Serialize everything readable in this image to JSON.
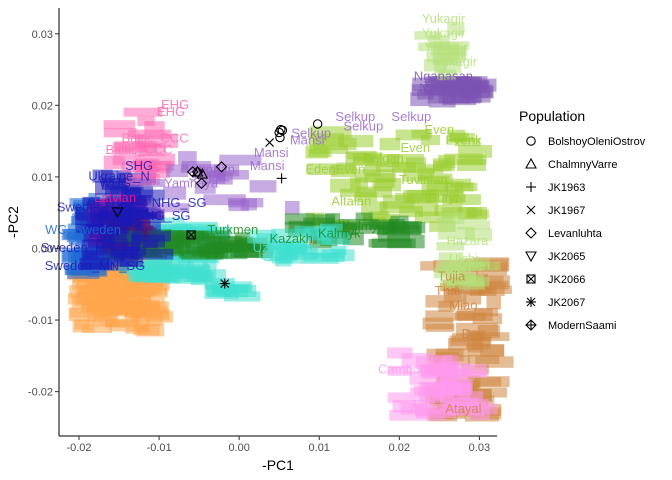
{
  "chart_data": {
    "type": "scatter",
    "xlabel": "-PC1",
    "ylabel": "-PC2",
    "xlim": [
      -0.0225,
      0.0322
    ],
    "ylim": [
      -0.0262,
      0.0336
    ],
    "x_ticks": [
      -0.02,
      -0.01,
      0.0,
      0.01,
      0.02,
      0.03
    ],
    "x_tick_labels": [
      "-0.02",
      "-0.01",
      "0.00",
      "0.01",
      "0.02",
      "0.03"
    ],
    "y_ticks": [
      -0.02,
      -0.01,
      0.0,
      0.01,
      0.02,
      0.03
    ],
    "y_tick_labels": [
      "-0.02",
      "-0.01",
      "0.00",
      "0.01",
      "0.02",
      "0.03"
    ],
    "grid": false,
    "legend": {
      "title": "Population",
      "placement": "right",
      "entries": [
        {
          "name": "BolshoyOleniOstrov",
          "shape": "circle"
        },
        {
          "name": "ChalmnyVarre",
          "shape": "triangle"
        },
        {
          "name": "JK1963",
          "shape": "plus"
        },
        {
          "name": "JK1967",
          "shape": "cross"
        },
        {
          "name": "Levanluhta",
          "shape": "diamond"
        },
        {
          "name": "JK2065",
          "shape": "triangle-down"
        },
        {
          "name": "JK2066",
          "shape": "square-cross"
        },
        {
          "name": "JK2067",
          "shape": "asterisk"
        },
        {
          "name": "ModernSaami",
          "shape": "diamond-plus"
        }
      ]
    },
    "background_clouds": [
      {
        "color": "#ffa64d",
        "x": [
          -0.0215,
          -0.0105
        ],
        "y": [
          -0.0115,
          -0.0015
        ],
        "n": 120
      },
      {
        "color": "#40e0d0",
        "x": [
          -0.015,
          -0.003
        ],
        "y": [
          -0.0045,
          0.0035
        ],
        "n": 80
      },
      {
        "color": "#1f6bd6",
        "x": [
          -0.0222,
          -0.016
        ],
        "y": [
          -0.0035,
          0.007
        ],
        "n": 55
      },
      {
        "color": "#ff1493",
        "x": [
          -0.019,
          -0.011
        ],
        "y": [
          0.0005,
          0.0065
        ],
        "n": 45
      },
      {
        "color": "#8b1a1a",
        "x": [
          -0.0175,
          -0.012
        ],
        "y": [
          0.0,
          0.0045
        ],
        "n": 25
      },
      {
        "color": "#228b22",
        "x": [
          -0.017,
          0.0018
        ],
        "y": [
          -0.001,
          0.002
        ],
        "n": 55
      },
      {
        "color": "#1a1ab8",
        "x": [
          -0.0205,
          -0.0105
        ],
        "y": [
          -0.0025,
          0.011
        ],
        "n": 55
      },
      {
        "color": "#ff69b4",
        "x": [
          -0.0175,
          -0.0095
        ],
        "y": [
          0.0095,
          0.0195
        ],
        "n": 22
      },
      {
        "color": "#9966cc",
        "x": [
          -0.014,
          0.007
        ],
        "y": [
          0.0055,
          0.013
        ],
        "n": 22
      },
      {
        "color": "#9acd32",
        "x": [
          0.008,
          0.0305
        ],
        "y": [
          0.003,
          0.0165
        ],
        "n": 80
      },
      {
        "color": "#228b22",
        "x": [
          0.005,
          0.022
        ],
        "y": [
          0.0005,
          0.0045
        ],
        "n": 30
      },
      {
        "color": "#40e0d0",
        "x": [
          0.001,
          0.0125
        ],
        "y": [
          -0.0025,
          0.003
        ],
        "n": 25
      },
      {
        "color": "#40e0d0",
        "x": [
          -0.0045,
          0.0005
        ],
        "y": [
          -0.007,
          -0.0045
        ],
        "n": 10
      },
      {
        "color": "#7b52b3",
        "x": [
          0.021,
          0.0305
        ],
        "y": [
          0.0205,
          0.0235
        ],
        "n": 30
      },
      {
        "color": "#b5e07a",
        "x": [
          0.0215,
          0.0285
        ],
        "y": [
          0.024,
          0.0315
        ],
        "n": 12
      },
      {
        "color": "#cd853f",
        "x": [
          0.0225,
          0.032
        ],
        "y": [
          -0.0235,
          -0.002
        ],
        "n": 80
      },
      {
        "color": "#ff99ee",
        "x": [
          0.018,
          0.0305
        ],
        "y": [
          -0.0235,
          -0.0145
        ],
        "n": 45
      },
      {
        "color": "#b5e07a",
        "x": [
          0.024,
          0.03
        ],
        "y": [
          -0.0055,
          0.0045
        ],
        "n": 20
      }
    ],
    "text_labels": [
      {
        "text": "Yukagir",
        "x": 0.0255,
        "y": 0.0315,
        "color": "#b5e07a"
      },
      {
        "text": "Yukagir",
        "x": 0.0255,
        "y": 0.0295,
        "color": "#b5e07a"
      },
      {
        "text": "Yukagir",
        "x": 0.0258,
        "y": 0.0275,
        "color": "#b5e07a"
      },
      {
        "text": "Yukagir",
        "x": 0.027,
        "y": 0.0255,
        "color": "#b5e07a"
      },
      {
        "text": "Nganasan",
        "x": 0.0255,
        "y": 0.0235,
        "color": "#7b52b3"
      },
      {
        "text": "Nganasan",
        "x": 0.0262,
        "y": 0.0218,
        "color": "#7b52b3"
      },
      {
        "text": "Selkup",
        "x": 0.0145,
        "y": 0.0178,
        "color": "#9966cc"
      },
      {
        "text": "Selkup",
        "x": 0.0215,
        "y": 0.0178,
        "color": "#9966cc"
      },
      {
        "text": "Selkup",
        "x": 0.0155,
        "y": 0.0165,
        "color": "#9966cc"
      },
      {
        "text": "Selkup",
        "x": 0.009,
        "y": 0.0155,
        "color": "#9966cc"
      },
      {
        "text": "Mansi",
        "x": 0.0085,
        "y": 0.0145,
        "color": "#9966cc"
      },
      {
        "text": "Mansi",
        "x": 0.004,
        "y": 0.0128,
        "color": "#9966cc"
      },
      {
        "text": "Mansi",
        "x": 0.0035,
        "y": 0.011,
        "color": "#9966cc"
      },
      {
        "text": "Even",
        "x": 0.025,
        "y": 0.016,
        "color": "#9acd32"
      },
      {
        "text": "Even",
        "x": 0.022,
        "y": 0.0135,
        "color": "#9acd32"
      },
      {
        "text": "Evenk",
        "x": 0.028,
        "y": 0.0145,
        "color": "#9acd32"
      },
      {
        "text": "Dolgan",
        "x": 0.018,
        "y": 0.012,
        "color": "#9acd32"
      },
      {
        "text": "EdenEven",
        "x": 0.012,
        "y": 0.0105,
        "color": "#9acd32"
      },
      {
        "text": "Tuvinian",
        "x": 0.023,
        "y": 0.009,
        "color": "#9acd32"
      },
      {
        "text": "Buryat",
        "x": 0.026,
        "y": 0.0065,
        "color": "#9acd32"
      },
      {
        "text": "Altaian",
        "x": 0.014,
        "y": 0.006,
        "color": "#9acd32"
      },
      {
        "text": "Kalmyk",
        "x": 0.0155,
        "y": 0.0025,
        "color": "#228b22"
      },
      {
        "text": "Kalmyk",
        "x": 0.0125,
        "y": 0.0015,
        "color": "#228b22"
      },
      {
        "text": "Kazakh",
        "x": 0.0065,
        "y": 0.0008,
        "color": "#228b22"
      },
      {
        "text": "Turkmen",
        "x": -0.0008,
        "y": 0.002,
        "color": "#228b22"
      },
      {
        "text": "Uzbek",
        "x": 0.004,
        "y": -0.0005,
        "color": "#40e0d0"
      },
      {
        "text": "Uyghur",
        "x": 0.005,
        "y": -0.0015,
        "color": "#40e0d0"
      },
      {
        "text": "Hazara",
        "x": 0.0285,
        "y": 0.0005,
        "color": "#b5e07a"
      },
      {
        "text": "Ulchi",
        "x": 0.028,
        "y": -0.002,
        "color": "#b5e07a"
      },
      {
        "text": "Hezhen",
        "x": 0.0285,
        "y": -0.003,
        "color": "#b5e07a"
      },
      {
        "text": "Tujia",
        "x": 0.0265,
        "y": -0.0045,
        "color": "#cd853f"
      },
      {
        "text": "Thai",
        "x": 0.026,
        "y": -0.0065,
        "color": "#cd853f"
      },
      {
        "text": "Miao",
        "x": 0.028,
        "y": -0.0085,
        "color": "#cd853f"
      },
      {
        "text": "Dai",
        "x": 0.029,
        "y": -0.0125,
        "color": "#cd853f"
      },
      {
        "text": "Cambodian",
        "x": 0.0215,
        "y": -0.0175,
        "color": "#ff99ee"
      },
      {
        "text": "Atayal",
        "x": 0.028,
        "y": -0.023,
        "color": "#cd853f"
      },
      {
        "text": "EHG",
        "x": -0.008,
        "y": 0.0195,
        "color": "#ff69b4"
      },
      {
        "text": "EHG",
        "x": -0.0085,
        "y": 0.0185,
        "color": "#ff69b4"
      },
      {
        "text": "Baltic_CCC",
        "x": -0.0105,
        "y": 0.0148,
        "color": "#ff69b4"
      },
      {
        "text": "Baltic_CCC",
        "x": -0.0125,
        "y": 0.0132,
        "color": "#ff69b4"
      },
      {
        "text": "SHG",
        "x": -0.0125,
        "y": 0.011,
        "color": "#1a1ab8"
      },
      {
        "text": "WHG",
        "x": -0.0155,
        "y": 0.0085,
        "color": "#1a1ab8"
      },
      {
        "text": "Ukraine_N",
        "x": -0.015,
        "y": 0.0095,
        "color": "#1a1ab8"
      },
      {
        "text": "Sweden_PWC",
        "x": -0.0175,
        "y": 0.0052,
        "color": "#1a1ab8"
      },
      {
        "text": "WC_Sweden",
        "x": -0.0195,
        "y": 0.002,
        "color": "#1f6bd6"
      },
      {
        "text": "NHG_SG",
        "x": -0.0075,
        "y": 0.0058,
        "color": "#1a1ab8"
      },
      {
        "text": "NHG_SG",
        "x": -0.0095,
        "y": 0.004,
        "color": "#1a1ab8"
      },
      {
        "text": "Sweden_MN_SG",
        "x": -0.0185,
        "y": -0.0005,
        "color": "#1a1ab8"
      },
      {
        "text": "Sweden_MN_SG",
        "x": -0.018,
        "y": -0.003,
        "color": "#1a1ab8"
      },
      {
        "text": "Latvian",
        "x": -0.0155,
        "y": 0.0065,
        "color": "#ff1493"
      },
      {
        "text": "Yamnaya",
        "x": -0.006,
        "y": 0.0085,
        "color": "#9966cc"
      },
      {
        "text": "Ingrian",
        "x": -0.003,
        "y": 0.0105,
        "color": "#9966cc"
      },
      {
        "text": "Saami",
        "x": -0.004,
        "y": 0.0095,
        "color": "#9966cc"
      }
    ],
    "series": [
      {
        "name": "BolshoyOleniOstrov",
        "shape": "circle",
        "points": [
          [
            0.0098,
            0.0174
          ],
          [
            0.0052,
            0.0166
          ],
          [
            0.005,
            0.0162
          ],
          [
            0.0051,
            0.0155
          ],
          [
            0.0054,
            0.0165
          ]
        ]
      },
      {
        "name": "ChalmnyVarre",
        "shape": "triangle",
        "points": [
          [
            -0.0052,
            0.0107
          ],
          [
            -0.0046,
            0.0104
          ]
        ]
      },
      {
        "name": "JK1963",
        "shape": "plus",
        "points": [
          [
            0.0053,
            0.0098
          ]
        ]
      },
      {
        "name": "JK1967",
        "shape": "cross",
        "points": [
          [
            0.0038,
            0.0148
          ]
        ]
      },
      {
        "name": "Levanluhta",
        "shape": "diamond",
        "points": [
          [
            -0.0022,
            0.0114
          ],
          [
            -0.0047,
            0.0091
          ],
          [
            -0.0058,
            0.0107
          ],
          [
            -0.0052,
            0.0107
          ]
        ]
      },
      {
        "name": "JK2065",
        "shape": "triangle-down",
        "points": [
          [
            -0.0152,
            0.0051
          ]
        ]
      },
      {
        "name": "JK2066",
        "shape": "square-cross",
        "points": [
          [
            -0.006,
            0.0019
          ]
        ]
      },
      {
        "name": "JK2067",
        "shape": "asterisk",
        "points": [
          [
            -0.0018,
            -0.0049
          ]
        ]
      },
      {
        "name": "ModernSaami",
        "shape": "diamond-plus",
        "points": []
      }
    ]
  }
}
